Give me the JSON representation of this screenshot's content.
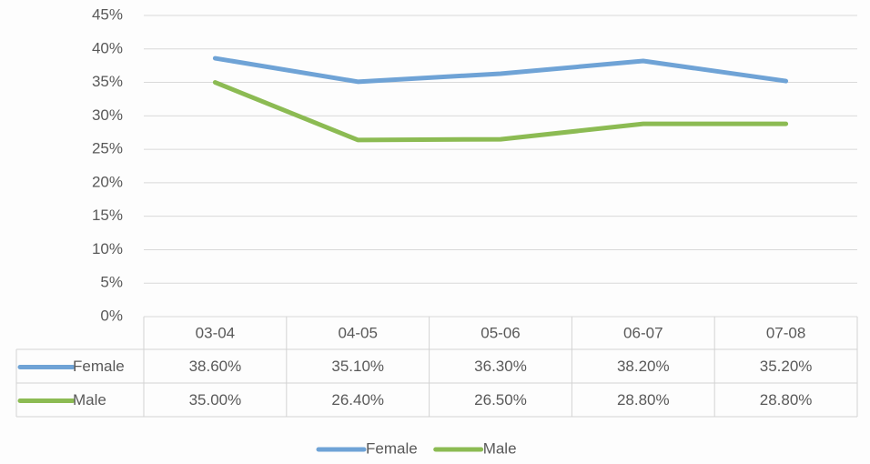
{
  "chart_data": {
    "type": "line",
    "categories": [
      "03-04",
      "04-05",
      "05-06",
      "06-07",
      "07-08"
    ],
    "series": [
      {
        "name": "Female",
        "color": "#6fa3d6",
        "values": [
          38.6,
          35.1,
          36.3,
          38.2,
          35.2
        ],
        "value_labels": [
          "38.60%",
          "35.10%",
          "36.30%",
          "38.20%",
          "35.20%"
        ]
      },
      {
        "name": "Male",
        "color": "#8cbb53",
        "values": [
          35.0,
          26.4,
          26.5,
          28.8,
          28.8
        ],
        "value_labels": [
          "35.00%",
          "26.40%",
          "26.50%",
          "28.80%",
          "28.80%"
        ]
      }
    ],
    "ylim": [
      0,
      45
    ],
    "yticks": [
      {
        "value": 0,
        "label": "0%"
      },
      {
        "value": 5,
        "label": "5%"
      },
      {
        "value": 10,
        "label": "10%"
      },
      {
        "value": 15,
        "label": "15%"
      },
      {
        "value": 20,
        "label": "20%"
      },
      {
        "value": 25,
        "label": "25%"
      },
      {
        "value": 30,
        "label": "30%"
      },
      {
        "value": 35,
        "label": "35%"
      },
      {
        "value": 40,
        "label": "40%"
      },
      {
        "value": 45,
        "label": "45%"
      }
    ],
    "grid": true,
    "data_table": true,
    "legend": "bottom"
  }
}
